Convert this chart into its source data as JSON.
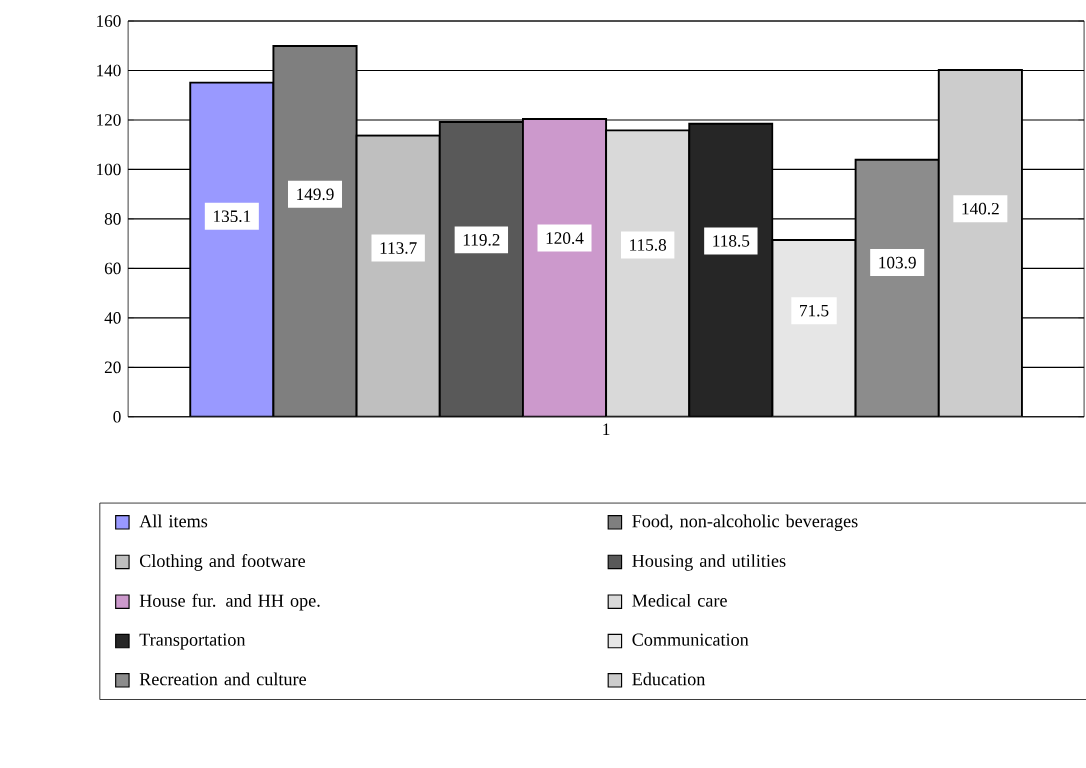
{
  "chart_data": {
    "type": "bar",
    "categories": [
      "1"
    ],
    "ylim": [
      0,
      160
    ],
    "yticks": [
      0,
      20,
      40,
      60,
      80,
      100,
      120,
      140,
      160
    ],
    "grid": "y",
    "legend": "bottom",
    "data_labels": true,
    "series": [
      {
        "name": "All items",
        "color": "#9999ff",
        "values": [
          135.1
        ]
      },
      {
        "name": "Food, non-alcoholic beverages",
        "color": "#7f7f7f",
        "values": [
          149.9
        ]
      },
      {
        "name": "Clothing and footware",
        "color": "#bfbfbf",
        "values": [
          113.7
        ]
      },
      {
        "name": "Housing and utilities",
        "color": "#595959",
        "values": [
          119.2
        ]
      },
      {
        "name": "House fur. and HH ope.",
        "color": "#cc99cc",
        "values": [
          120.4
        ]
      },
      {
        "name": "Medical care",
        "color": "#d9d9d9",
        "values": [
          115.8
        ]
      },
      {
        "name": "Transportation",
        "color": "#262626",
        "values": [
          118.5
        ]
      },
      {
        "name": "Communication",
        "color": "#e6e6e6",
        "values": [
          71.5
        ]
      },
      {
        "name": "Recreation and culture",
        "color": "#8c8c8c",
        "values": [
          103.9
        ]
      },
      {
        "name": "Education",
        "color": "#cccccc",
        "values": [
          140.2
        ]
      }
    ]
  }
}
